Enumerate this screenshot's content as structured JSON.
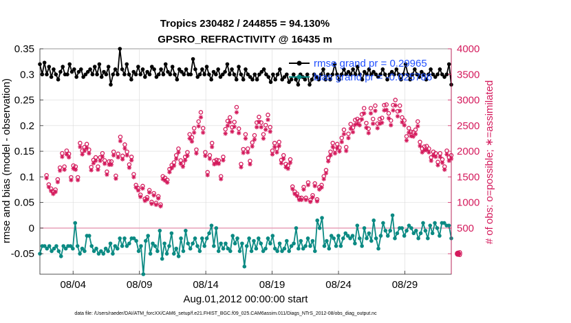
{
  "chart_data": {
    "type": "line",
    "title": [
      "Tropics 230482 / 244855 = 94.130%",
      "GPSRO_REFRACTIVITY @ 16435 m"
    ],
    "xlabel": "Aug.01,2012 00:00:00 start",
    "ylabel_left": "rmse and bias (model - observation)",
    "ylabel_right": "# of obs: o=possible; ∗=assimilated",
    "footnote": "data file: /Users/raeder/DAI/ATM_forcXX/CAM6_setup/f.e21.FHIST_BGC.f09_025.CAM6assim.011/Diags_NTrS_2012-08/obs_diag_output.nc",
    "xlim": [
      1.5,
      32.5
    ],
    "ylim_left": [
      -0.09,
      0.35
    ],
    "ylim_right": [
      -400,
      4000
    ],
    "x_ticks": [
      4,
      9,
      14,
      19,
      24,
      29
    ],
    "x_tick_labels": [
      "08/04",
      "08/09",
      "08/14",
      "08/19",
      "08/24",
      "08/29"
    ],
    "y_left_ticks": [
      -0.05,
      0,
      0.05,
      0.1,
      0.15,
      0.2,
      0.25,
      0.3,
      0.35
    ],
    "y_left_tick_labels": [
      "-0.05",
      "0",
      "0.05",
      "0.1",
      "0.15",
      "0.2",
      "0.25",
      "0.3",
      "0.35"
    ],
    "y_right_ticks": [
      0,
      500,
      1000,
      1500,
      2000,
      2500,
      3000,
      3500,
      4000
    ],
    "y_right_tick_labels": [
      "0",
      "500",
      "1000",
      "1500",
      "2000",
      "2500",
      "3000",
      "3500",
      "4000"
    ],
    "series": [
      {
        "name": "rmse grand pr = 0.29965",
        "axis": "left",
        "color": "#000000",
        "marker": "filled-circle",
        "values": [
          0.32,
          0.3,
          0.323,
          0.3,
          0.315,
          0.295,
          0.31,
          0.3,
          0.29,
          0.305,
          0.315,
          0.3,
          0.3,
          0.32,
          0.305,
          0.31,
          0.295,
          0.305,
          0.31,
          0.295,
          0.3,
          0.305,
          0.31,
          0.3,
          0.315,
          0.3,
          0.32,
          0.295,
          0.305,
          0.3,
          0.315,
          0.28,
          0.3,
          0.31,
          0.3,
          0.35,
          0.31,
          0.3,
          0.32,
          0.3,
          0.29,
          0.305,
          0.3,
          0.315,
          0.3,
          0.31,
          0.295,
          0.305,
          0.3,
          0.315,
          0.31,
          0.295,
          0.3,
          0.31,
          0.3,
          0.32,
          0.305,
          0.3,
          0.315,
          0.3,
          0.29,
          0.31,
          0.305,
          0.3,
          0.31,
          0.3,
          0.3,
          0.33,
          0.31,
          0.295,
          0.3,
          0.31,
          0.3,
          0.315,
          0.3,
          0.29,
          0.305,
          0.3,
          0.31,
          0.295,
          0.3,
          0.305,
          0.32,
          0.3,
          0.31,
          0.3,
          0.29,
          0.315,
          0.3,
          0.29,
          0.31,
          0.3,
          0.295,
          0.29,
          0.3,
          0.29,
          0.3,
          0.305,
          0.31,
          0.3,
          0.295,
          0.285,
          0.3,
          0.29,
          0.3,
          0.31,
          0.29,
          0.295,
          0.3,
          0.285,
          0.29,
          0.3,
          0.29,
          0.28,
          0.3,
          0.295,
          0.29,
          0.3,
          0.28,
          0.29,
          0.3,
          0.295,
          0.29,
          0.3,
          0.31,
          0.29,
          0.3,
          0.29,
          0.3,
          0.32,
          0.3,
          0.29,
          0.3,
          0.31,
          0.3,
          0.305,
          0.3,
          0.31,
          0.3,
          0.315,
          0.3,
          0.29,
          0.305,
          0.3,
          0.31,
          0.3,
          0.305,
          0.3,
          0.295,
          0.3,
          0.31,
          0.3,
          0.29,
          0.3,
          0.305,
          0.3,
          0.31,
          0.3,
          0.29,
          0.3,
          0.32,
          0.3,
          0.29,
          0.3,
          0.31,
          0.3,
          0.295,
          0.305,
          0.3,
          0.29,
          0.3,
          0.31,
          0.3,
          0.295,
          0.3,
          0.31,
          0.3,
          0.295,
          0.3,
          0.32,
          0.28
        ]
      },
      {
        "name": "bias grand pr = -0.025786",
        "axis": "left",
        "color": "#0b8a83",
        "marker": "filled-circle",
        "values": [
          -0.05,
          -0.035,
          -0.035,
          -0.04,
          -0.035,
          -0.045,
          -0.04,
          -0.035,
          -0.045,
          -0.055,
          -0.035,
          -0.04,
          -0.035,
          -0.035,
          -0.04,
          0.01,
          -0.035,
          -0.05,
          -0.04,
          -0.045,
          -0.015,
          -0.015,
          -0.035,
          -0.045,
          -0.04,
          -0.05,
          -0.045,
          -0.05,
          -0.04,
          -0.045,
          -0.03,
          -0.05,
          -0.035,
          -0.04,
          -0.02,
          -0.035,
          -0.02,
          -0.035,
          -0.03,
          -0.02,
          -0.02,
          -0.025,
          -0.045,
          -0.035,
          -0.09,
          -0.025,
          -0.015,
          -0.05,
          -0.03,
          -0.035,
          -0.045,
          -0.005,
          -0.06,
          -0.03,
          -0.05,
          -0.035,
          -0.01,
          -0.05,
          -0.04,
          -0.055,
          -0.02,
          -0.045,
          -0.005,
          -0.03,
          -0.04,
          -0.03,
          -0.02,
          -0.035,
          -0.045,
          -0.02,
          -0.035,
          -0.02,
          -0.01,
          0.005,
          -0.035,
          0.0,
          -0.045,
          -0.03,
          -0.04,
          -0.03,
          -0.04,
          -0.045,
          -0.015,
          -0.03,
          -0.02,
          -0.045,
          -0.03,
          -0.075,
          -0.035,
          -0.02,
          -0.045,
          -0.025,
          -0.04,
          -0.02,
          -0.03,
          -0.045,
          -0.04,
          -0.02,
          -0.03,
          -0.015,
          -0.04,
          -0.045,
          -0.03,
          -0.045,
          -0.04,
          -0.025,
          -0.045,
          -0.035,
          -0.03,
          0.0,
          -0.04,
          -0.025,
          -0.04,
          -0.035,
          -0.02,
          -0.035,
          -0.025,
          -0.045,
          0.015,
          0.0,
          0.02,
          -0.035,
          -0.025,
          -0.04,
          -0.015,
          -0.02,
          -0.035,
          -0.015,
          -0.035,
          -0.02,
          -0.01,
          -0.015,
          -0.02,
          -0.015,
          -0.03,
          0.005,
          -0.02,
          -0.035,
          0.0,
          -0.02,
          -0.01,
          -0.025,
          0.015,
          -0.02,
          -0.04,
          -0.015,
          0.01,
          -0.005,
          -0.015,
          -0.005,
          0.025,
          -0.02,
          -0.01,
          0.0,
          0.0,
          -0.015,
          -0.005,
          0.005,
          0.0,
          -0.01,
          -0.005,
          -0.02,
          -0.01,
          0.01,
          -0.005,
          -0.02,
          0.005,
          -0.01,
          0.01,
          0.0,
          -0.015,
          0.01,
          0.01,
          0.005,
          0.005,
          -0.02
        ]
      }
    ],
    "counts": {
      "axis": "right",
      "color": "#d41a5c",
      "possible": [
        1530,
        1350,
        1270,
        1210,
        1250,
        1450,
        1680,
        1960,
        1700,
        2010,
        1950,
        1490,
        1720,
        1700,
        1490,
        2160,
        2010,
        2080,
        2140,
        2030,
        1690,
        1830,
        1880,
        1700,
        1880,
        1960,
        1820,
        1600,
        1800,
        1800,
        1990,
        1520,
        1950,
        2280,
        1910,
        2130,
        1990,
        1740,
        1890,
        1550,
        1340,
        1280,
        1150,
        1320,
        1070,
        1100,
        1240,
        1010,
        1180,
        990,
        1120,
        960,
        1510,
        1480,
        1440,
        1650,
        1730,
        1780,
        1920,
        2050,
        1820,
        1760,
        1890,
        1980,
        2330,
        2270,
        2450,
        2030,
        2580,
        2760,
        2450,
        1980,
        1590,
        1920,
        2160,
        1810,
        1830,
        1820,
        1510,
        1890,
        2430,
        2590,
        2660,
        2470,
        2570,
        2860,
        2440,
        1750,
        2040,
        2330,
        2050,
        1810,
        2170,
        2310,
        2560,
        2670,
        2560,
        2330,
        2510,
        2710,
        2470,
        2010,
        2160,
        2050,
        2180,
        1830,
        1920,
        1750,
        1720,
        1840,
        1310,
        1210,
        1170,
        1090,
        1090,
        1300,
        1090,
        1390,
        1050,
        1140,
        1370,
        1060,
        1300,
        1340,
        1510,
        1630,
        1870,
        1990,
        2160,
        2030,
        2140,
        2070,
        2260,
        2420,
        2080,
        2340,
        2530,
        2460,
        2610,
        2630,
        2600,
        2720,
        2840,
        2550,
        2440,
        2840,
        2630,
        2890,
        2540,
        2630,
        2650,
        2900,
        2910,
        2740,
        2600,
        2900,
        3000,
        2780,
        2890,
        2660,
        2600,
        2290,
        2450,
        2380,
        2370,
        2420,
        2580,
        2180,
        2050,
        2090,
        2100,
        2050,
        1880,
        1990,
        1960,
        1790,
        1960,
        1840,
        1700,
        2010,
        1880,
        1920
      ]
    },
    "outlier_marker": {
      "x": 33,
      "value": 0,
      "axis": "right"
    },
    "zero_line": {
      "value": 0,
      "axis": "left",
      "color": "#e8a0b8"
    }
  }
}
